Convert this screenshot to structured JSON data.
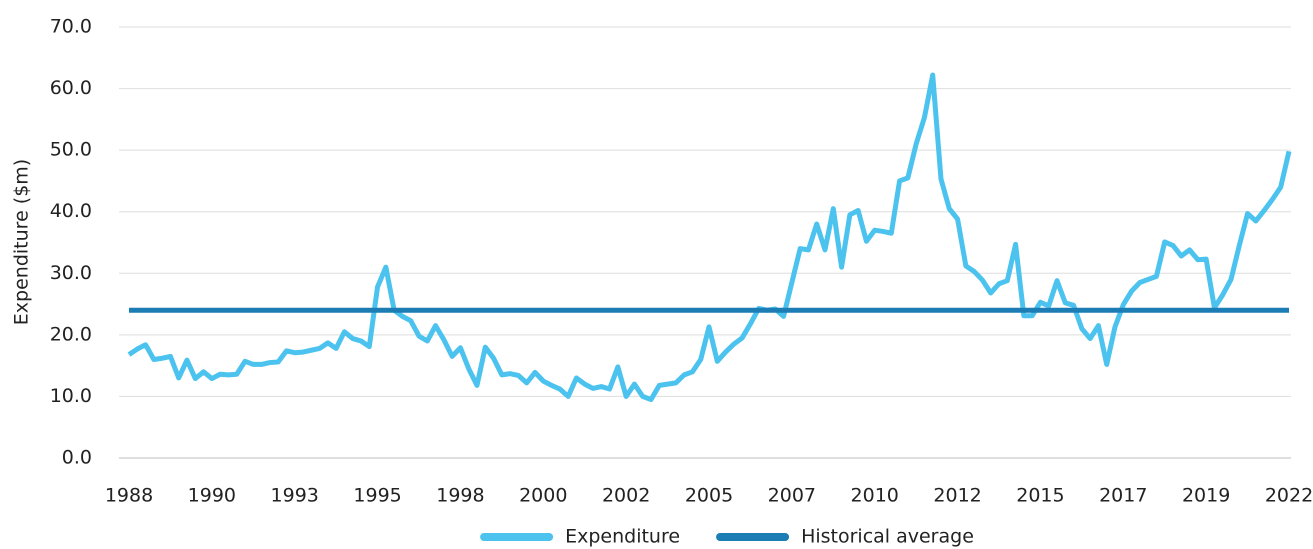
{
  "chart_data": {
    "type": "line",
    "ylabel": "Expenditure ($m)",
    "categories": [
      "1988",
      null,
      null,
      null,
      null,
      null,
      null,
      null,
      null,
      null,
      "1990",
      null,
      null,
      null,
      null,
      null,
      null,
      null,
      null,
      null,
      "1993",
      null,
      null,
      null,
      null,
      null,
      null,
      null,
      null,
      null,
      "1995",
      null,
      null,
      null,
      null,
      null,
      null,
      null,
      null,
      null,
      "1998",
      null,
      null,
      null,
      null,
      null,
      null,
      null,
      null,
      null,
      "2000",
      null,
      null,
      null,
      null,
      null,
      null,
      null,
      null,
      null,
      "2002",
      null,
      null,
      null,
      null,
      null,
      null,
      null,
      null,
      null,
      "2005",
      null,
      null,
      null,
      null,
      null,
      null,
      null,
      null,
      null,
      "2007",
      null,
      null,
      null,
      null,
      null,
      null,
      null,
      null,
      null,
      "2010",
      null,
      null,
      null,
      null,
      null,
      null,
      null,
      null,
      null,
      "2012",
      null,
      null,
      null,
      null,
      null,
      null,
      null,
      null,
      null,
      "2015",
      null,
      null,
      null,
      null,
      null,
      null,
      null,
      null,
      null,
      "2017",
      null,
      null,
      null,
      null,
      null,
      null,
      null,
      null,
      null,
      "2019",
      null,
      null,
      null,
      null,
      null,
      null,
      null,
      null,
      null,
      "2022"
    ],
    "series": [
      {
        "name": "Expenditure",
        "color": "#4cc3ee",
        "values": [
          16.8,
          17.7,
          18.4,
          16,
          16.2,
          16.5,
          13,
          15.9,
          12.9,
          14,
          12.9,
          13.6,
          13.5,
          13.6,
          15.7,
          15.2,
          15.2,
          15.5,
          15.6,
          17.4,
          17.1,
          17.2,
          17.5,
          17.8,
          18.7,
          17.8,
          20.5,
          19.4,
          19,
          18.1,
          27.8,
          31,
          24,
          23,
          22.3,
          19.8,
          19,
          21.5,
          19.2,
          16.5,
          17.9,
          14.5,
          11.8,
          18,
          16.2,
          13.5,
          13.7,
          13.4,
          12.2,
          13.9,
          12.5,
          11.8,
          11.2,
          10,
          13,
          12,
          11.3,
          11.6,
          11.2,
          14.8,
          10,
          12,
          10,
          9.5,
          11.8,
          12,
          12.2,
          13.5,
          14,
          16,
          21.3,
          15.7,
          17.2,
          18.5,
          19.5,
          21.8,
          24.3,
          24,
          24.2,
          23,
          28.5,
          34,
          33.8,
          38,
          33.8,
          40.5,
          31,
          39.5,
          40.2,
          35.2,
          37,
          36.8,
          36.5,
          45,
          45.5,
          51,
          55.3,
          62.2,
          45.3,
          40.5,
          38.8,
          31.2,
          30.3,
          28.9,
          26.8,
          28.3,
          28.8,
          34.7,
          23.1,
          23.1,
          25.3,
          24.7,
          28.8,
          25.2,
          24.8,
          21,
          19.4,
          21.5,
          15.2,
          21.3,
          24.9,
          27.1,
          28.5,
          29,
          29.5,
          35.1,
          34.5,
          32.8,
          33.8,
          32.2,
          32.3,
          24.4,
          26.5,
          29,
          34.5,
          39.7,
          38.5,
          40.2,
          42,
          44,
          49.8
        ]
      },
      {
        "name": "Historical average",
        "color": "#1b7db3",
        "values": [
          24,
          24,
          24,
          24,
          24,
          24,
          24,
          24,
          24,
          24,
          24,
          24,
          24,
          24,
          24,
          24,
          24,
          24,
          24,
          24,
          24,
          24,
          24,
          24,
          24,
          24,
          24,
          24,
          24,
          24,
          24,
          24,
          24,
          24,
          24,
          24,
          24,
          24,
          24,
          24,
          24,
          24,
          24,
          24,
          24,
          24,
          24,
          24,
          24,
          24,
          24,
          24,
          24,
          24,
          24,
          24,
          24,
          24,
          24,
          24,
          24,
          24,
          24,
          24,
          24,
          24,
          24,
          24,
          24,
          24,
          24,
          24,
          24,
          24,
          24,
          24,
          24,
          24,
          24,
          24,
          24,
          24,
          24,
          24,
          24,
          24,
          24,
          24,
          24,
          24,
          24,
          24,
          24,
          24,
          24,
          24,
          24,
          24,
          24,
          24,
          24,
          24,
          24,
          24,
          24,
          24,
          24,
          24,
          24,
          24,
          24,
          24,
          24,
          24,
          24,
          24,
          24,
          24,
          24,
          24,
          24,
          24,
          24,
          24,
          24,
          24,
          24,
          24,
          24,
          24,
          24,
          24,
          24,
          24,
          24,
          24,
          24,
          24,
          24,
          24,
          24
        ]
      }
    ],
    "ylim": [
      0,
      70
    ],
    "yticks": [
      {
        "value": 0,
        "label": "0.0"
      },
      {
        "value": 10,
        "label": "10.0"
      },
      {
        "value": 20,
        "label": "20.0"
      },
      {
        "value": 30,
        "label": "30.0"
      },
      {
        "value": 40,
        "label": "40.0"
      },
      {
        "value": 50,
        "label": "50.0"
      },
      {
        "value": 60,
        "label": "60.0"
      },
      {
        "value": 70,
        "label": "70.0"
      }
    ],
    "grid": true,
    "legend": "bottom"
  }
}
